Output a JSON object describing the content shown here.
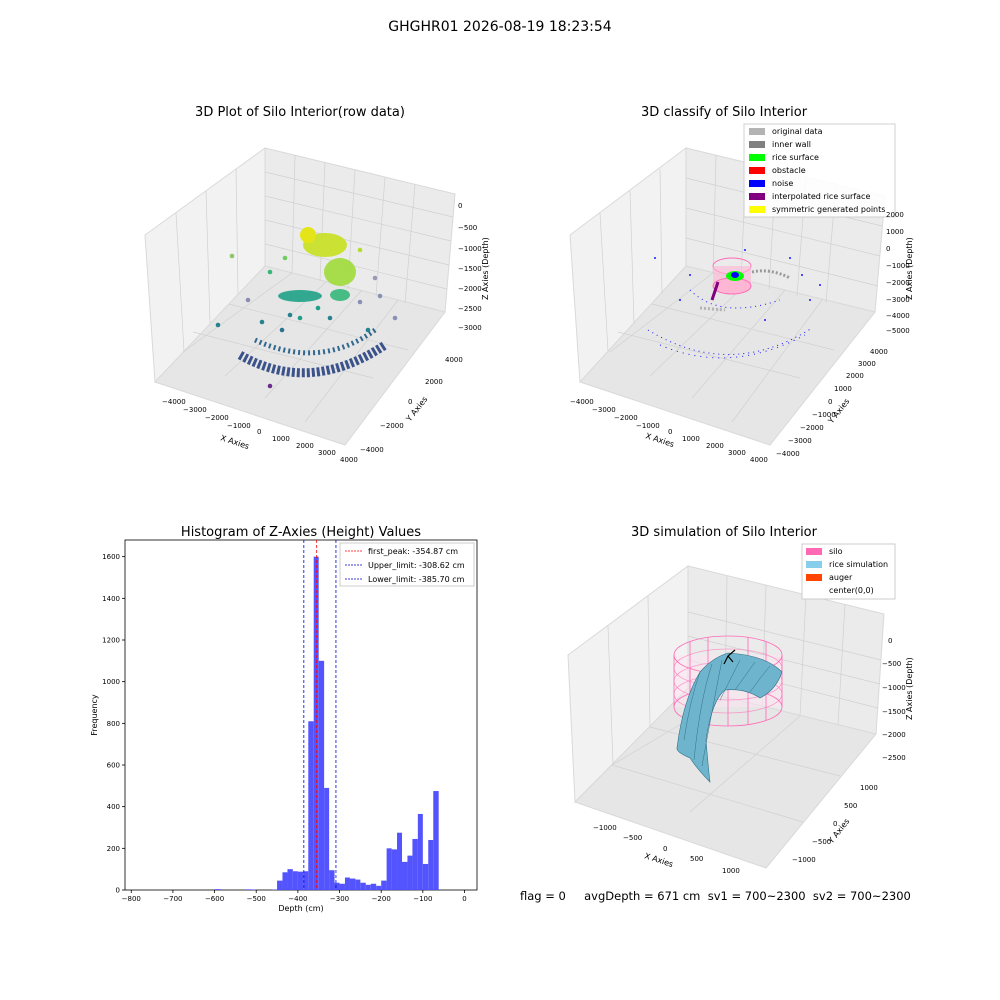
{
  "suptitle": "GHGHR01 2026-08-19 18:23:54",
  "panel1": {
    "title": "3D Plot of Silo Interior(row data)",
    "xlabel": "X Axies",
    "ylabel": "Y Axies",
    "zlabel": "Z Axies (Depth)",
    "xticks": [
      "−4000",
      "−3000",
      "−2000",
      "−1000",
      "0",
      "1000",
      "2000",
      "3000",
      "4000"
    ],
    "yticks": [
      "−4000",
      "−2000",
      "0",
      "2000",
      "4000"
    ],
    "zticks": [
      "0",
      "−500",
      "−1000",
      "−1500",
      "−2000",
      "−2500",
      "−3000"
    ]
  },
  "panel2": {
    "title": "3D classify of Silo Interior",
    "xlabel": "X Axies",
    "ylabel": "Y Axies",
    "zlabel": "Z Axies (Depth)",
    "xticks": [
      "−4000",
      "−3000",
      "−2000",
      "−1000",
      "0",
      "1000",
      "2000",
      "3000",
      "4000"
    ],
    "yticks": [
      "−4000",
      "−3000",
      "−2000",
      "−1000",
      "0",
      "1000",
      "2000",
      "3000",
      "4000"
    ],
    "zticks": [
      "2000",
      "1000",
      "0",
      "−1000",
      "−2000",
      "−3000",
      "−4000",
      "−5000"
    ],
    "legend": [
      {
        "label": "original data",
        "color": "#b3b3b3"
      },
      {
        "label": "inner wall",
        "color": "#808080"
      },
      {
        "label": "rice surface",
        "color": "#00ff00"
      },
      {
        "label": "obstacle",
        "color": "#ff0000"
      },
      {
        "label": "noise",
        "color": "#0000ff"
      },
      {
        "label": "interpolated rice surface",
        "color": "#800080"
      },
      {
        "label": "symmetric generated points",
        "color": "#ffff00"
      }
    ]
  },
  "panel4": {
    "title": "3D simulation of Silo Interior",
    "xlabel": "X Axies",
    "ylabel": "Y Axies",
    "zlabel": "Z Axies (Depth)",
    "xticks": [
      "−1000",
      "−500",
      "0",
      "500",
      "1000"
    ],
    "yticks": [
      "−1000",
      "−500",
      "0",
      "500",
      "1000"
    ],
    "zticks": [
      "0",
      "−500",
      "−1000",
      "−1500",
      "−2000",
      "−2500"
    ],
    "legend": [
      {
        "label": "silo",
        "color": "#ff69b4"
      },
      {
        "label": "rice simulation",
        "color": "#87ceeb"
      },
      {
        "label": "auger",
        "color": "#ff4500"
      },
      {
        "label": "center(0,0)",
        "color": "#ffffff"
      }
    ],
    "status": "flag = 0     avgDepth = 671 cm  sv1 = 700~2300  sv2 = 700~2300"
  },
  "chart_data": [
    {
      "type": "histogram",
      "title": "Histogram of Z-Axies (Height) Values",
      "xlabel": "Depth (cm)",
      "ylabel": "Frequency",
      "xlim": [
        -815,
        30
      ],
      "ylim": [
        0,
        1680
      ],
      "xticks": [
        -800,
        -700,
        -600,
        -500,
        -400,
        -300,
        -200,
        -100,
        0
      ],
      "yticks": [
        0,
        200,
        400,
        600,
        800,
        1000,
        1200,
        1400,
        1600
      ],
      "bar_color": "#4b4bff",
      "bins": [
        {
          "x0": -600,
          "x1": -585,
          "v": 4
        },
        {
          "x0": -525,
          "x1": -512,
          "v": 3
        },
        {
          "x0": -512,
          "x1": -500,
          "v": 2
        },
        {
          "x0": -462,
          "x1": -450,
          "v": 2
        },
        {
          "x0": -450,
          "x1": -437,
          "v": 45
        },
        {
          "x0": -437,
          "x1": -425,
          "v": 85
        },
        {
          "x0": -425,
          "x1": -412,
          "v": 100
        },
        {
          "x0": -412,
          "x1": -400,
          "v": 90
        },
        {
          "x0": -400,
          "x1": -387,
          "v": 88
        },
        {
          "x0": -387,
          "x1": -375,
          "v": 90
        },
        {
          "x0": -375,
          "x1": -362,
          "v": 810
        },
        {
          "x0": -362,
          "x1": -350,
          "v": 1600
        },
        {
          "x0": -350,
          "x1": -337,
          "v": 1100
        },
        {
          "x0": -337,
          "x1": -325,
          "v": 490
        },
        {
          "x0": -325,
          "x1": -312,
          "v": 95
        },
        {
          "x0": -312,
          "x1": -300,
          "v": 35
        },
        {
          "x0": -300,
          "x1": -287,
          "v": 30
        },
        {
          "x0": -287,
          "x1": -275,
          "v": 60
        },
        {
          "x0": -275,
          "x1": -262,
          "v": 55
        },
        {
          "x0": -262,
          "x1": -250,
          "v": 50
        },
        {
          "x0": -250,
          "x1": -237,
          "v": 35
        },
        {
          "x0": -237,
          "x1": -225,
          "v": 25
        },
        {
          "x0": -225,
          "x1": -212,
          "v": 30
        },
        {
          "x0": -212,
          "x1": -200,
          "v": 20
        },
        {
          "x0": -200,
          "x1": -187,
          "v": 45
        },
        {
          "x0": -187,
          "x1": -175,
          "v": 200
        },
        {
          "x0": -175,
          "x1": -162,
          "v": 195
        },
        {
          "x0": -162,
          "x1": -150,
          "v": 275
        },
        {
          "x0": -150,
          "x1": -137,
          "v": 135
        },
        {
          "x0": -137,
          "x1": -125,
          "v": 165
        },
        {
          "x0": -125,
          "x1": -112,
          "v": 245
        },
        {
          "x0": -112,
          "x1": -100,
          "v": 365
        },
        {
          "x0": -100,
          "x1": -87,
          "v": 125
        },
        {
          "x0": -87,
          "x1": -75,
          "v": 240
        },
        {
          "x0": -75,
          "x1": -62,
          "v": 475
        }
      ],
      "vlines": [
        {
          "x": -354.87,
          "color": "#ff0000",
          "label": "first_peak: -354.87 cm"
        },
        {
          "x": -308.62,
          "color": "#0000cc",
          "label": "Upper_limit: -308.62 cm"
        },
        {
          "x": -385.7,
          "color": "#0000cc",
          "label": "Lower_limit: -385.70 cm"
        }
      ],
      "legend_position": "upper-right"
    }
  ]
}
